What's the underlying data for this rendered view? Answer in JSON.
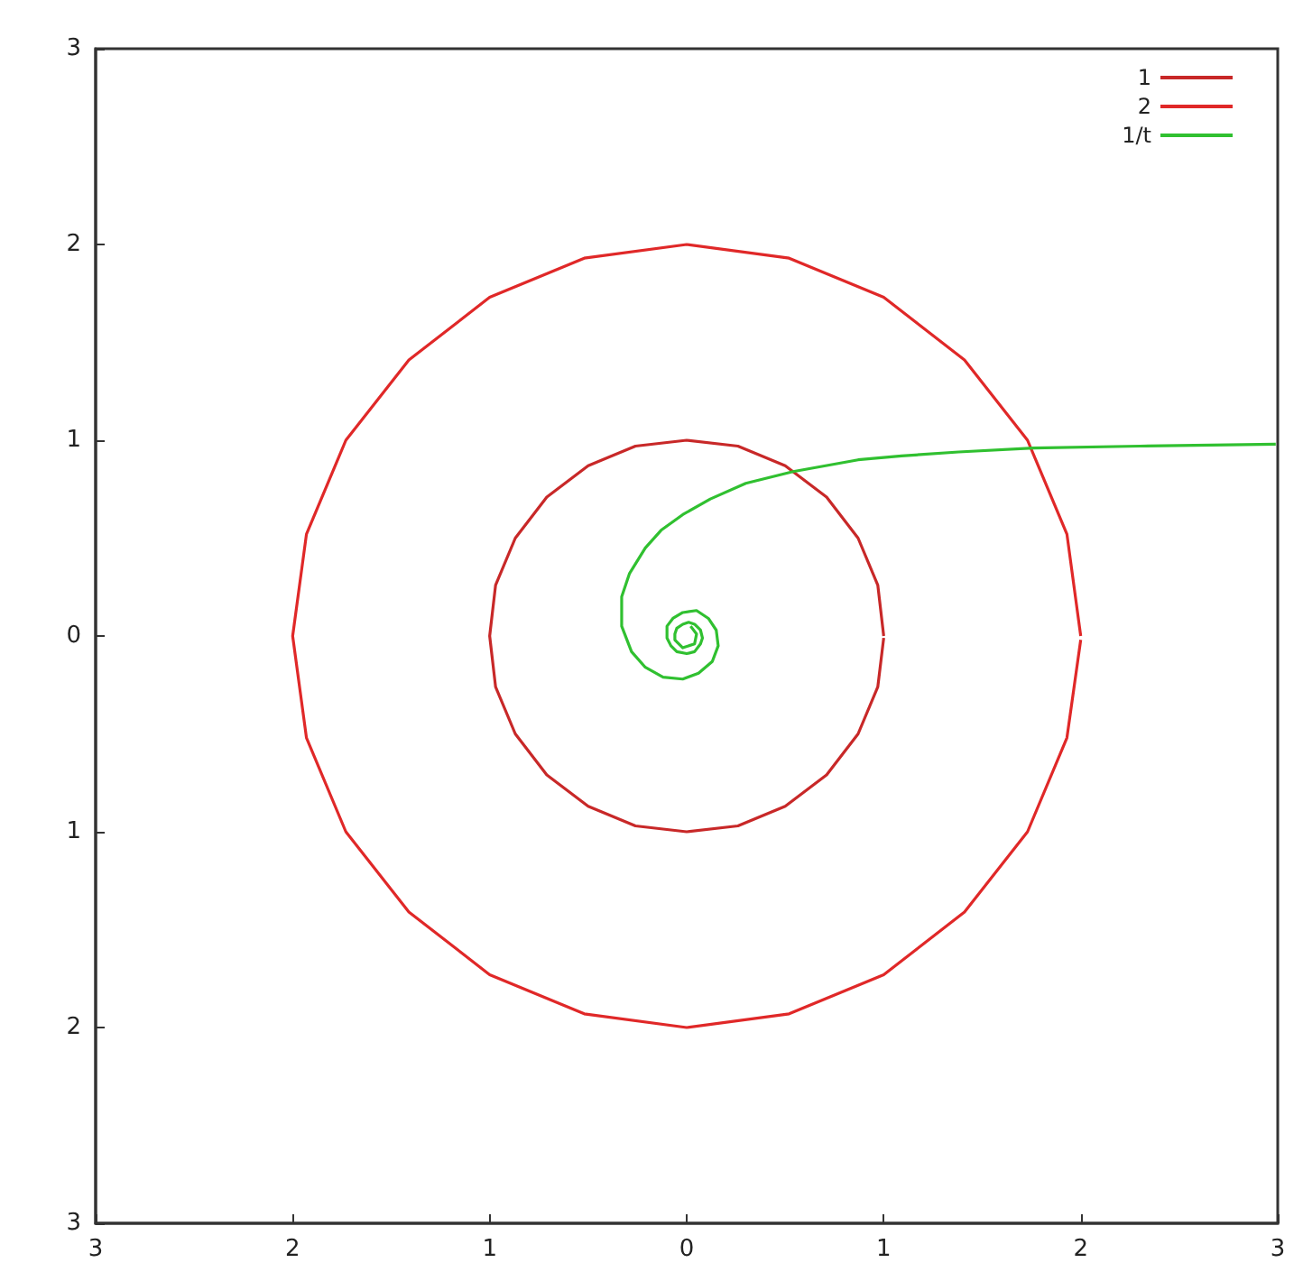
{
  "chart_data": {
    "type": "line",
    "marker": "none",
    "grid": false,
    "legend": "top right",
    "xlim": [
      -3,
      3
    ],
    "ylim": [
      -3,
      3
    ],
    "xticks": [
      {
        "value": -3,
        "label": "3"
      },
      {
        "value": -2,
        "label": "2"
      },
      {
        "value": -1,
        "label": "1"
      },
      0,
      1,
      2,
      3
    ],
    "yticks": [
      {
        "value": -3,
        "label": "3"
      },
      {
        "value": -2,
        "label": "2"
      },
      {
        "value": -1,
        "label": "1"
      },
      0,
      1,
      2,
      3
    ],
    "series": [
      {
        "name": "1",
        "color": "#c82828",
        "x": [
          1,
          0.97,
          0.87,
          0.71,
          0.5,
          0.26,
          0,
          -0.26,
          -0.5,
          -0.71,
          -0.87,
          -0.97,
          -1,
          -0.97,
          -0.87,
          -0.71,
          -0.5,
          -0.26,
          0,
          0.26,
          0.5,
          0.71,
          0.87,
          0.97,
          1
        ],
        "values": [
          0,
          0.26,
          0.5,
          0.71,
          0.87,
          0.97,
          1,
          0.97,
          0.87,
          0.71,
          0.5,
          0.26,
          0,
          -0.26,
          -0.5,
          -0.71,
          -0.87,
          -0.97,
          -1,
          -0.97,
          -0.87,
          -0.71,
          -0.5,
          -0.26,
          -0.01
        ]
      },
      {
        "name": "2",
        "color": "#e02828",
        "x": [
          2,
          1.93,
          1.73,
          1.41,
          1,
          0.52,
          0,
          -0.52,
          -1,
          -1.41,
          -1.73,
          -1.93,
          -2,
          -1.93,
          -1.73,
          -1.41,
          -1,
          -0.52,
          0,
          0.52,
          1,
          1.41,
          1.73,
          1.93,
          2
        ],
        "values": [
          0,
          0.52,
          1,
          1.41,
          1.73,
          1.93,
          2,
          1.93,
          1.73,
          1.41,
          1,
          0.52,
          0,
          -0.52,
          -1,
          -1.41,
          -1.73,
          -1.93,
          -2,
          -1.93,
          -1.73,
          -1.41,
          -1,
          -0.52,
          -0.02
        ]
      },
      {
        "name": "1/t",
        "color": "#30c030",
        "x": [
          2.99,
          2.3,
          1.76,
          1.38,
          1.09,
          0.87,
          0.54,
          0.3,
          0.12,
          -0.02,
          -0.13,
          -0.21,
          -0.29,
          -0.33,
          -0.33,
          -0.28,
          -0.21,
          -0.12,
          -0.02,
          0.06,
          0.13,
          0.16,
          0.15,
          0.11,
          0.05,
          -0.02,
          -0.07,
          -0.1,
          -0.1,
          -0.08,
          -0.05,
          0,
          0.04,
          0.07,
          0.08,
          0.07,
          0.04,
          0.01,
          -0.02,
          -0.05,
          -0.06,
          -0.06,
          -0.02,
          0.04,
          0.05,
          0.02
        ],
        "values": [
          0.98,
          0.97,
          0.96,
          0.94,
          0.92,
          0.9,
          0.84,
          0.78,
          0.7,
          0.62,
          0.54,
          0.45,
          0.32,
          0.2,
          0.05,
          -0.08,
          -0.16,
          -0.21,
          -0.22,
          -0.19,
          -0.13,
          -0.05,
          0.03,
          0.09,
          0.13,
          0.12,
          0.09,
          0.05,
          -0.01,
          -0.05,
          -0.08,
          -0.09,
          -0.08,
          -0.04,
          -0.01,
          0.03,
          0.06,
          0.07,
          0.06,
          0.04,
          0.01,
          -0.02,
          -0.06,
          -0.04,
          0.01,
          0.05
        ]
      }
    ]
  }
}
